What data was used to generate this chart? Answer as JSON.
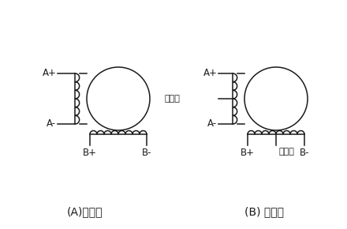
{
  "bg_color": "#ffffff",
  "line_color": "#1a1a1a",
  "label_A_plus": "A+",
  "label_A_minus": "A-",
  "label_B_plus": "B+",
  "label_B_minus": "B-",
  "label_power": "接电源",
  "caption_A": "(A)双极性",
  "caption_B": "(B) 单极性",
  "font_size_label": 8.5,
  "font_size_caption": 10,
  "font_size_power": 8
}
